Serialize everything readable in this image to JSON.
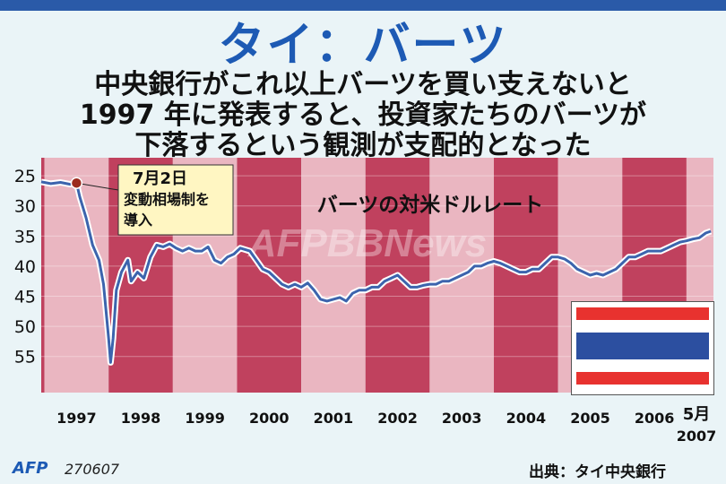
{
  "header": {
    "title": "タイ：バーツ",
    "subtitle_lines": [
      "中央銀行がこれ以上バーツを買い支えないと",
      "1997 年に発表すると、投資家たちのバーツが",
      "下落するという観測が支配的となった"
    ]
  },
  "watermark": "AFPBBNews",
  "footer": {
    "logo": "AFP",
    "code": "270607",
    "source": "出典：タイ中央銀行"
  },
  "colors": {
    "band_dark": "#c0415e",
    "band_light": "#eab6c1",
    "line": "#3c64ad",
    "title": "#1d5ab4",
    "flag_red": "#e8322f",
    "flag_white": "#ffffff",
    "flag_blue": "#2c4fa0"
  },
  "flag_icon": "thailand-flag",
  "chart_data": {
    "type": "line",
    "title": "バーツの対米ドルレート",
    "y_inverted": true,
    "ylim": [
      61,
      22
    ],
    "yticks": [
      25,
      30,
      35,
      40,
      45,
      50,
      55
    ],
    "x_tick_labels": [
      "1997",
      "1998",
      "1999",
      "2000",
      "2001",
      "2002",
      "2003",
      "2004",
      "2005",
      "2006",
      "5月",
      "2007"
    ],
    "x_years": [
      1997,
      1998,
      1999,
      2000,
      2001,
      2002,
      2003,
      2004,
      2005,
      2006
    ],
    "xlim": [
      1996.95,
      2007.42
    ],
    "series": [
      {
        "points": [
          [
            1996.95,
            26.0
          ],
          [
            1997.1,
            26.3
          ],
          [
            1997.25,
            26.1
          ],
          [
            1997.4,
            26.4
          ],
          [
            1997.5,
            26.2
          ],
          [
            1997.55,
            28.5
          ],
          [
            1997.65,
            32.0
          ],
          [
            1997.75,
            36.5
          ],
          [
            1997.85,
            39.0
          ],
          [
            1997.92,
            43.0
          ],
          [
            1998.0,
            52.0
          ],
          [
            1998.03,
            56.0
          ],
          [
            1998.07,
            52.0
          ],
          [
            1998.12,
            44.0
          ],
          [
            1998.2,
            41.0
          ],
          [
            1998.3,
            39.0
          ],
          [
            1998.35,
            42.5
          ],
          [
            1998.45,
            41.0
          ],
          [
            1998.55,
            42.0
          ],
          [
            1998.65,
            38.5
          ],
          [
            1998.75,
            36.5
          ],
          [
            1998.85,
            36.8
          ],
          [
            1998.95,
            36.3
          ],
          [
            1999.05,
            37.0
          ],
          [
            1999.15,
            37.5
          ],
          [
            1999.25,
            37.0
          ],
          [
            1999.35,
            37.5
          ],
          [
            1999.45,
            37.5
          ],
          [
            1999.55,
            36.8
          ],
          [
            1999.65,
            39.0
          ],
          [
            1999.75,
            39.5
          ],
          [
            1999.85,
            38.5
          ],
          [
            1999.95,
            38.0
          ],
          [
            2000.05,
            37.0
          ],
          [
            2000.2,
            37.5
          ],
          [
            2000.3,
            39.0
          ],
          [
            2000.4,
            40.5
          ],
          [
            2000.5,
            41.0
          ],
          [
            2000.6,
            42.0
          ],
          [
            2000.7,
            43.0
          ],
          [
            2000.8,
            43.5
          ],
          [
            2000.9,
            43.0
          ],
          [
            2001.0,
            43.5
          ],
          [
            2001.1,
            42.8
          ],
          [
            2001.2,
            44.0
          ],
          [
            2001.3,
            45.5
          ],
          [
            2001.4,
            45.8
          ],
          [
            2001.5,
            45.5
          ],
          [
            2001.6,
            45.2
          ],
          [
            2001.7,
            45.8
          ],
          [
            2001.8,
            44.5
          ],
          [
            2001.9,
            44.0
          ],
          [
            2002.0,
            44.0
          ],
          [
            2002.1,
            43.5
          ],
          [
            2002.2,
            43.5
          ],
          [
            2002.3,
            42.5
          ],
          [
            2002.4,
            42.0
          ],
          [
            2002.5,
            41.5
          ],
          [
            2002.6,
            42.5
          ],
          [
            2002.7,
            43.5
          ],
          [
            2002.8,
            43.5
          ],
          [
            2002.9,
            43.2
          ],
          [
            2003.0,
            43.0
          ],
          [
            2003.1,
            43.0
          ],
          [
            2003.2,
            42.5
          ],
          [
            2003.3,
            42.5
          ],
          [
            2003.4,
            42.0
          ],
          [
            2003.5,
            41.5
          ],
          [
            2003.6,
            41.0
          ],
          [
            2003.7,
            40.0
          ],
          [
            2003.8,
            40.0
          ],
          [
            2003.9,
            39.5
          ],
          [
            2004.0,
            39.2
          ],
          [
            2004.1,
            39.5
          ],
          [
            2004.2,
            40.0
          ],
          [
            2004.3,
            40.5
          ],
          [
            2004.4,
            41.0
          ],
          [
            2004.5,
            41.0
          ],
          [
            2004.6,
            40.5
          ],
          [
            2004.7,
            40.5
          ],
          [
            2004.8,
            39.5
          ],
          [
            2004.9,
            38.5
          ],
          [
            2005.0,
            38.5
          ],
          [
            2005.1,
            38.8
          ],
          [
            2005.2,
            39.5
          ],
          [
            2005.3,
            40.5
          ],
          [
            2005.4,
            41.0
          ],
          [
            2005.5,
            41.5
          ],
          [
            2005.6,
            41.2
          ],
          [
            2005.7,
            41.5
          ],
          [
            2005.8,
            41.0
          ],
          [
            2005.9,
            40.5
          ],
          [
            2006.0,
            39.5
          ],
          [
            2006.1,
            38.5
          ],
          [
            2006.2,
            38.5
          ],
          [
            2006.3,
            38.0
          ],
          [
            2006.4,
            37.5
          ],
          [
            2006.5,
            37.5
          ],
          [
            2006.6,
            37.5
          ],
          [
            2006.7,
            37.0
          ],
          [
            2006.8,
            36.5
          ],
          [
            2006.9,
            36.0
          ],
          [
            2007.0,
            35.8
          ],
          [
            2007.1,
            35.5
          ],
          [
            2007.2,
            35.3
          ],
          [
            2007.3,
            34.5
          ],
          [
            2007.38,
            34.2
          ]
        ]
      }
    ],
    "annotation": {
      "date": 1997.5,
      "value": 26.2,
      "lines": [
        "7月2日",
        "変動相場制を",
        "導入"
      ]
    }
  }
}
